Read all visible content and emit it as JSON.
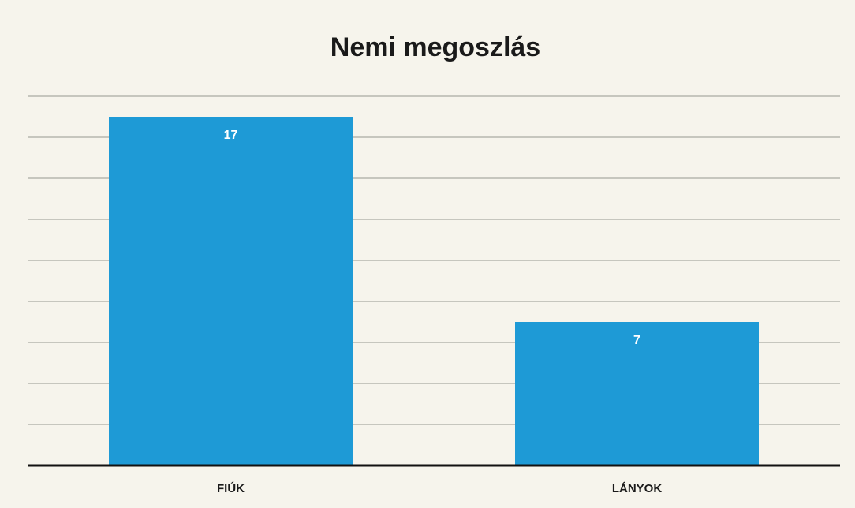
{
  "chart_data": {
    "type": "bar",
    "title": "Nemi megoszlás",
    "categories": [
      "FIÚK",
      "LÁNYOK"
    ],
    "values": [
      17,
      7
    ],
    "color": "#1e9ad6",
    "ylim": [
      0,
      18
    ],
    "yticks": [
      0,
      2,
      4,
      6,
      8,
      10,
      12,
      14,
      16,
      18
    ],
    "grid": true
  }
}
